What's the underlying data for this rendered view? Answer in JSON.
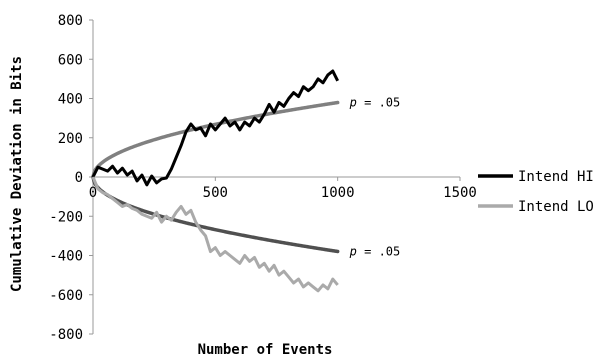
{
  "chart_data": {
    "type": "line",
    "xlabel": "Number of Events",
    "ylabel": "Cumulative Deviation in Bits",
    "xlim": [
      0,
      1500
    ],
    "ylim": [
      -800,
      800
    ],
    "x_ticks": [
      "0",
      "500",
      "1000",
      "1500"
    ],
    "y_ticks": [
      "800",
      "600",
      "400",
      "200",
      "0",
      "-200",
      "-400",
      "-600",
      "-800"
    ],
    "legend_position": "right",
    "grid": false,
    "series": [
      {
        "name": "Intend HI",
        "color": "#000000",
        "x": [
          0,
          20,
          40,
          60,
          80,
          100,
          120,
          140,
          160,
          180,
          200,
          220,
          240,
          260,
          280,
          300,
          320,
          340,
          360,
          380,
          400,
          420,
          440,
          460,
          480,
          500,
          520,
          540,
          560,
          580,
          600,
          620,
          640,
          660,
          680,
          700,
          720,
          740,
          760,
          780,
          800,
          820,
          840,
          860,
          880,
          900,
          920,
          940,
          960,
          980,
          1000
        ],
        "values": [
          0,
          50,
          40,
          30,
          55,
          20,
          45,
          10,
          30,
          -20,
          10,
          -40,
          5,
          -30,
          -10,
          -5,
          40,
          100,
          160,
          230,
          270,
          240,
          250,
          210,
          270,
          240,
          270,
          300,
          260,
          280,
          240,
          280,
          260,
          300,
          280,
          320,
          370,
          330,
          380,
          360,
          400,
          430,
          410,
          460,
          440,
          460,
          500,
          480,
          520,
          540,
          490
        ]
      },
      {
        "name": "Intend LO",
        "color": "#aaaaaa",
        "x": [
          0,
          20,
          40,
          60,
          80,
          100,
          120,
          140,
          160,
          180,
          200,
          220,
          240,
          260,
          280,
          300,
          320,
          340,
          360,
          380,
          400,
          420,
          440,
          460,
          480,
          500,
          520,
          540,
          560,
          580,
          600,
          620,
          640,
          660,
          680,
          700,
          720,
          740,
          760,
          780,
          800,
          820,
          840,
          860,
          880,
          900,
          920,
          940,
          960,
          980,
          1000
        ],
        "values": [
          0,
          -60,
          -80,
          -90,
          -110,
          -130,
          -150,
          -140,
          -160,
          -170,
          -190,
          -200,
          -210,
          -180,
          -230,
          -200,
          -220,
          -180,
          -150,
          -190,
          -170,
          -230,
          -270,
          -300,
          -380,
          -360,
          -400,
          -380,
          -400,
          -420,
          -440,
          -400,
          -430,
          -410,
          -460,
          -440,
          -480,
          -450,
          -500,
          -480,
          -510,
          -540,
          -520,
          -560,
          -540,
          -560,
          -580,
          -550,
          -570,
          -520,
          -550
        ]
      }
    ],
    "bounds": [
      {
        "name": "upper-bound",
        "color": "#808080",
        "coef": 12.0,
        "label_p": "p",
        "label_value": " = .05",
        "label_x": 1000
      },
      {
        "name": "lower-bound",
        "color": "#505050",
        "coef": -12.0,
        "label_p": "p",
        "label_value": " = .05",
        "label_x": 1000
      }
    ]
  }
}
